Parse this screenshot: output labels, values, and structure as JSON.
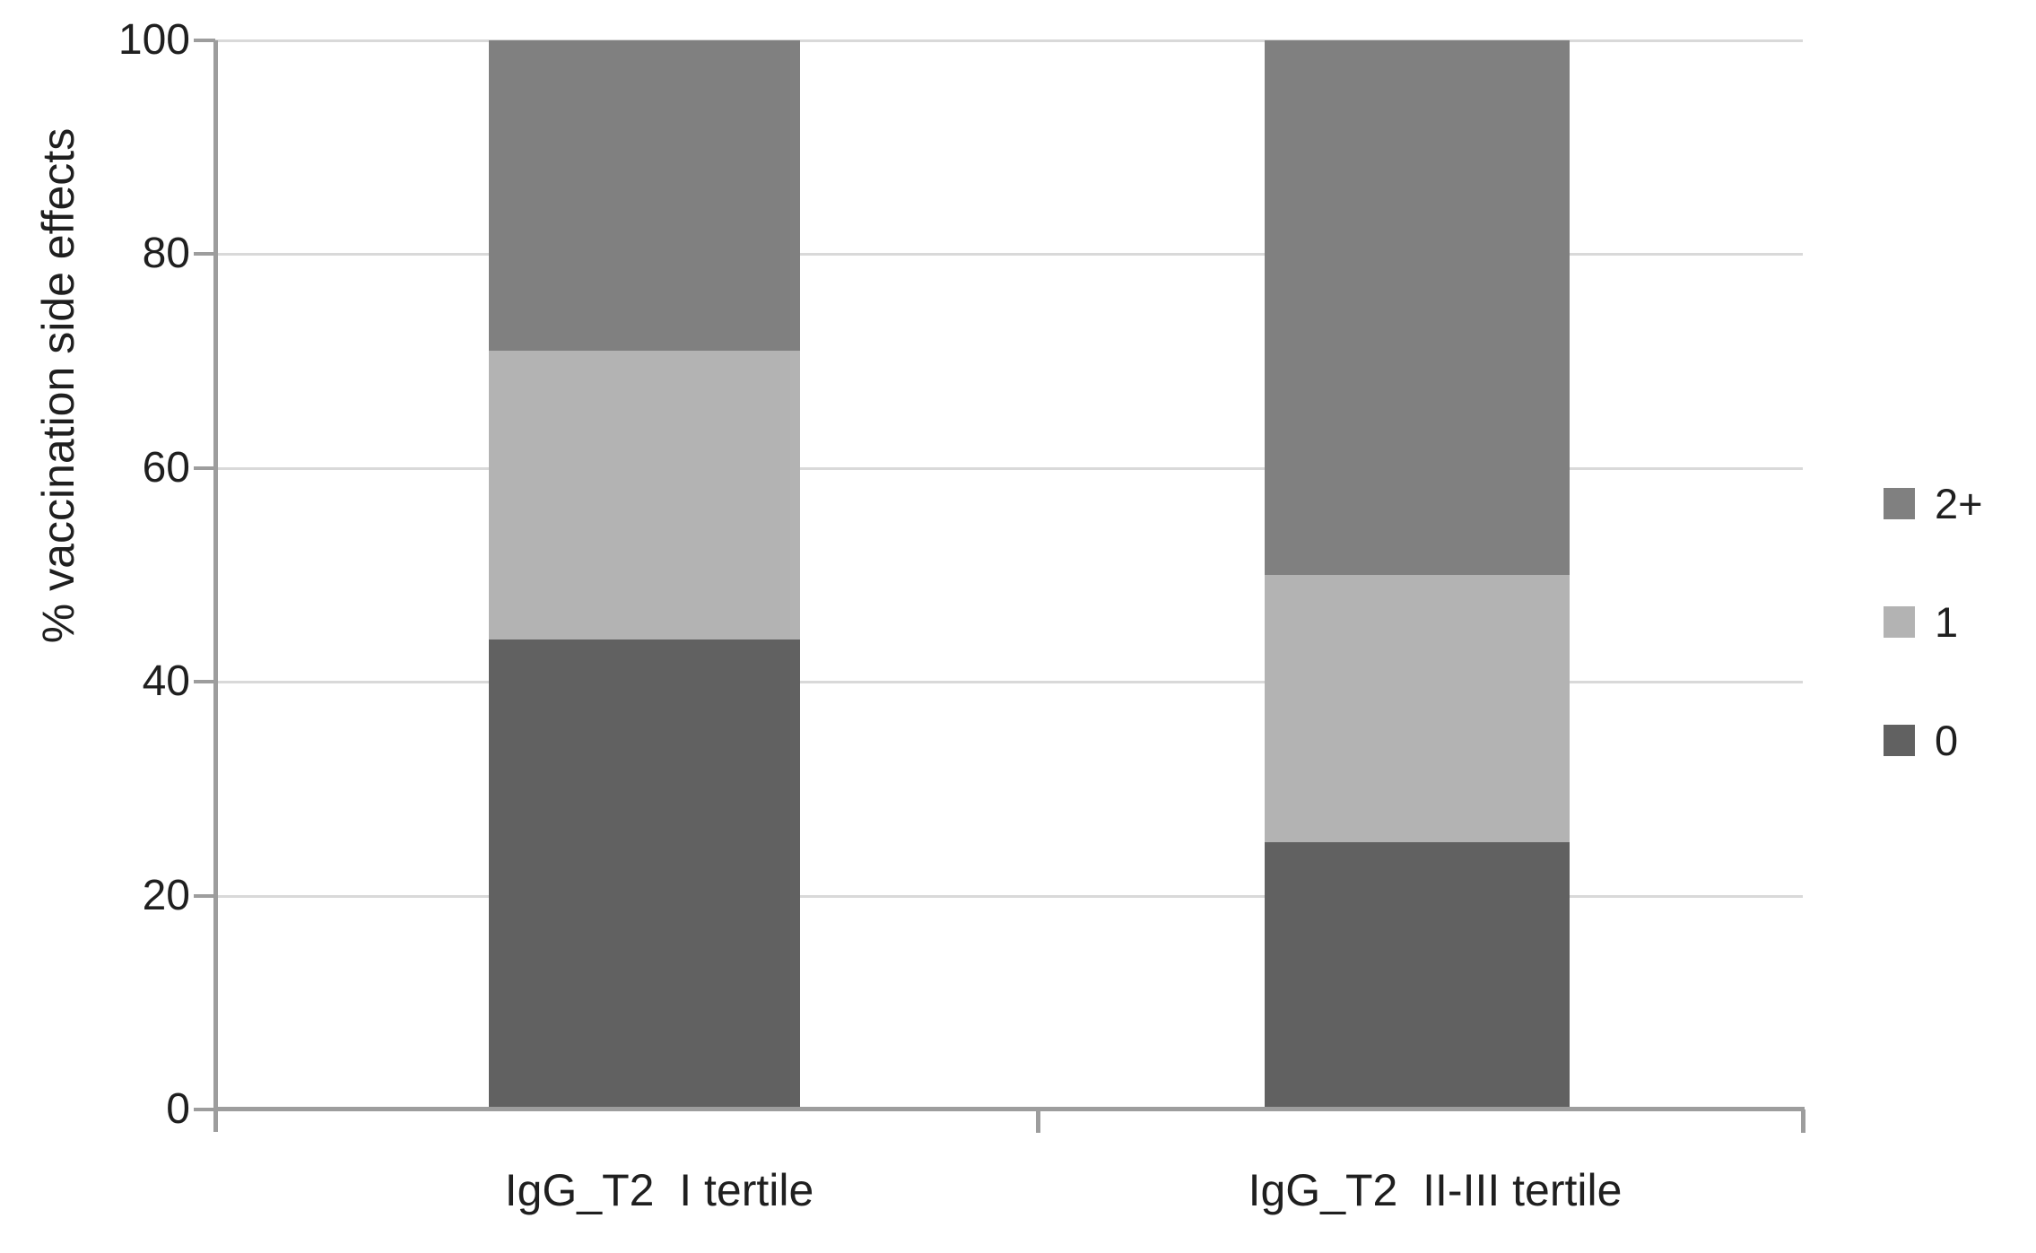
{
  "chart_data": {
    "type": "bar",
    "stacked": true,
    "orientation": "vertical",
    "title": "",
    "xlabel": "",
    "ylabel": "% vaccination side effects",
    "categories": [
      "IgG_T2  I tertile",
      "IgG_T2  II-III tertile"
    ],
    "series": [
      {
        "name": "0",
        "color": "#616161",
        "values": [
          44,
          25
        ]
      },
      {
        "name": "1",
        "color": "#b3b3b3",
        "values": [
          27,
          25
        ]
      },
      {
        "name": "2+",
        "color": "#808080",
        "values": [
          29,
          50
        ]
      }
    ],
    "yticks": [
      0,
      20,
      40,
      60,
      80,
      100
    ],
    "ylim": [
      0,
      100
    ],
    "grid": true,
    "legend": {
      "position": "right",
      "items_top_to_bottom": [
        "2+",
        "1",
        "0"
      ]
    },
    "colors": {
      "gridline": "#d9d9d9",
      "axis": "#9d9d9d",
      "text": "#1f1f1f",
      "background": "#ffffff"
    }
  }
}
